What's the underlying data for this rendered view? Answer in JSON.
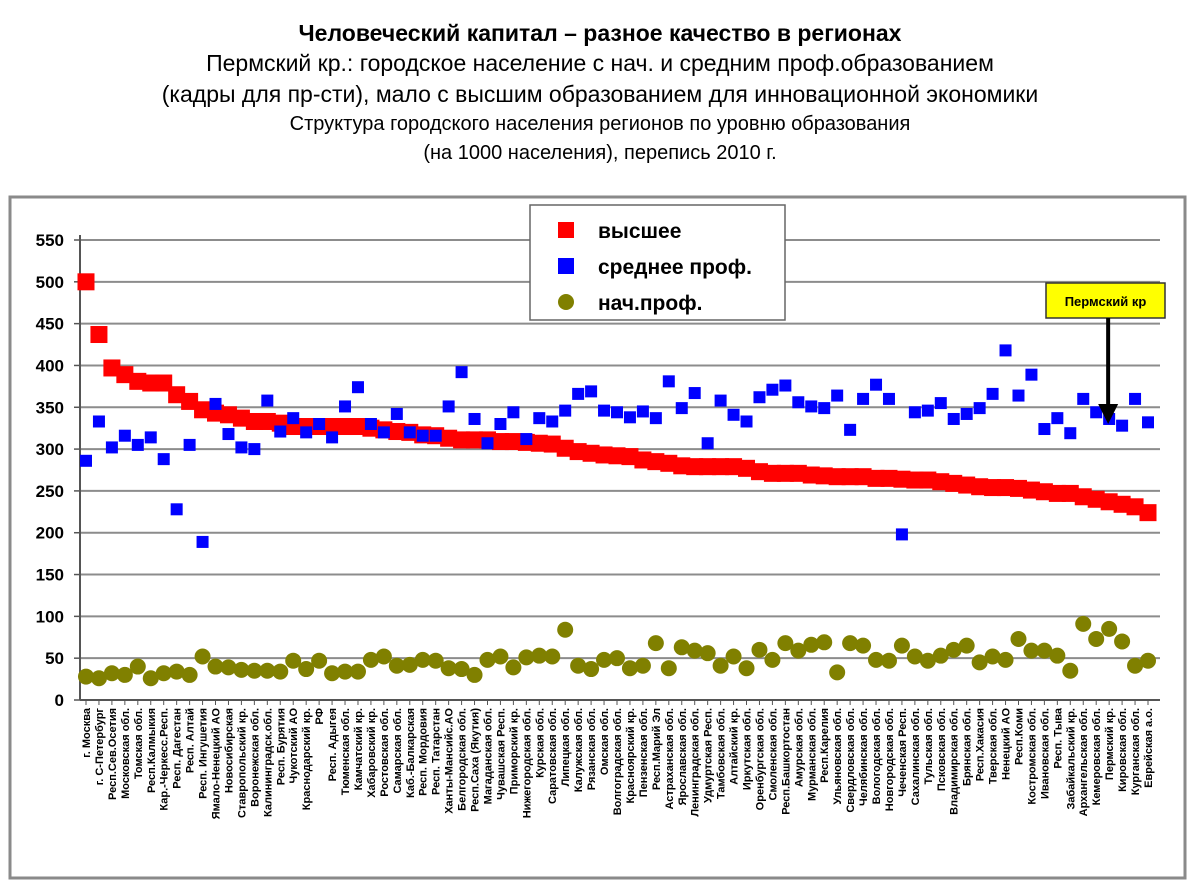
{
  "header": {
    "title": "Человеческий капитал – разное качество в регионах",
    "subtitle_line1": "Пермский кр.: городское население с нач. и средним проф.образованием",
    "subtitle_line2": "(кадры для пр-сти), мало с высшим образованием для инновационной экономики",
    "chart_title_line1": "Структура городского населения регионов по уровню образования",
    "chart_title_line2": "(на 1000 населения), перепись 2010 г."
  },
  "chart_data": {
    "type": "scatter",
    "title": "Структура городского населения регионов по уровню образования (на 1000 населения), перепись 2010 г.",
    "xlabel": "",
    "ylabel": "",
    "ylim": [
      0,
      550
    ],
    "yticks": [
      0,
      50,
      100,
      150,
      200,
      250,
      300,
      350,
      400,
      450,
      500,
      550
    ],
    "grid": true,
    "legend_position": "top-center",
    "annotation": {
      "text": "Пермский кр",
      "target_category": "Пермский кр.",
      "color": "#ffff00"
    },
    "categories": [
      "г. Москва",
      "г. С-Петербург",
      "Респ.Сев.Осетия",
      "Московская обл.",
      "Томская обл.",
      "Респ.Калмыкия",
      "Кар.-Черкесс.Респ.",
      "Респ. Дагестан",
      "Респ. Алтай",
      "Респ. Ингушетия",
      "Ямало-Ненецкий АО",
      "Новосибирская",
      "Ставропольский кр.",
      "Воронежская обл.",
      "Калининградск.обл.",
      "Респ. Бурятия",
      "Чукотский АО",
      "Краснодарский кр.",
      "РФ",
      "Респ. Адыгея",
      "Тюменская обл.",
      "Камчатский кр.",
      "Хабаровский кр.",
      "Ростовская обл.",
      "Самарская обл.",
      "Каб.-Балкарская",
      "Респ. Мордовия",
      "Респ. Татарстан",
      "Ханты-Мансийс.АО",
      "Белгородская обл.",
      "Респ.Саха (Якутия)",
      "Магаданская обл.",
      "Чувашская Респ.",
      "Приморский кр.",
      "Нижегородская обл.",
      "Курская обл.",
      "Саратовская обл.",
      "Липецкая обл.",
      "Калужская обл.",
      "Рязанская обл.",
      "Омская обл.",
      "Волгоградская обл.",
      "Красноярский кр.",
      "Пензенская обл.",
      "Респ.Марий Эл",
      "Астраханская обл.",
      "Ярославская обл.",
      "Ленинградская обл.",
      "Удмуртская Респ.",
      "Тамбовская обл.",
      "Алтайский кр.",
      "Иркутская обл.",
      "Оренбургская обл.",
      "Смоленская обл.",
      "Респ.Башкортостан",
      "Амурская обл.",
      "Мурманская обл.",
      "Респ.Карелия",
      "Ульяновская обл.",
      "Свердловская обл.",
      "Челябинская обл.",
      "Вологодская обл.",
      "Новгородская обл.",
      "Чеченская Респ.",
      "Сахалинская обл.",
      "Тульская обл.",
      "Псковская обл.",
      "Владимирская обл.",
      "Брянская обл.",
      "Респ.Хакасия",
      "Тверская обл.",
      "Ненецкий АО",
      "Респ.Коми",
      "Костромская обл.",
      "Ивановская обл.",
      "Респ. Тыва",
      "Забайкальский кр.",
      "Архангельская обл.",
      "Кемеровская обл.",
      "Пермский кр.",
      "Кировская обл.",
      "Курганская обл.",
      "Еврейская а.о."
    ],
    "series": [
      {
        "name": "высшее",
        "marker": "square",
        "color": "#ff0000",
        "values": [
          500,
          437,
          397,
          389,
          381,
          379,
          379,
          365,
          357,
          347,
          343,
          341,
          337,
          333,
          333,
          331,
          327,
          327,
          327,
          327,
          327,
          327,
          325,
          323,
          321,
          320,
          317,
          316,
          313,
          311,
          311,
          311,
          309,
          309,
          308,
          307,
          306,
          301,
          297,
          295,
          293,
          292,
          291,
          287,
          285,
          283,
          280,
          279,
          279,
          279,
          279,
          277,
          273,
          271,
          271,
          271,
          269,
          268,
          267,
          267,
          267,
          265,
          265,
          264,
          263,
          263,
          261,
          259,
          257,
          255,
          254,
          254,
          253,
          251,
          249,
          247,
          247,
          243,
          240,
          237,
          234,
          231,
          224
        ]
      },
      {
        "name": "среднее проф.",
        "marker": "square",
        "color": "#0000ff",
        "values": [
          286,
          333,
          302,
          316,
          305,
          314,
          288,
          228,
          305,
          189,
          354,
          318,
          302,
          300,
          358,
          321,
          337,
          320,
          330,
          314,
          351,
          374,
          330,
          320,
          342,
          320,
          316,
          316,
          351,
          392,
          336,
          307,
          330,
          344,
          312,
          337,
          333,
          346,
          366,
          369,
          346,
          344,
          338,
          345,
          337,
          381,
          349,
          367,
          307,
          358,
          341,
          333,
          362,
          371,
          376,
          356,
          351,
          349,
          364,
          323,
          360,
          377,
          360,
          198,
          344,
          346,
          355,
          336,
          342,
          349,
          366,
          418,
          364,
          389,
          324,
          337,
          319,
          360,
          344,
          336,
          328,
          360,
          332
        ]
      },
      {
        "name": "нач.проф.",
        "marker": "circle",
        "color": "#808000",
        "values": [
          28,
          26,
          32,
          30,
          40,
          26,
          32,
          34,
          30,
          52,
          40,
          39,
          36,
          35,
          35,
          34,
          47,
          37,
          47,
          32,
          34,
          34,
          48,
          52,
          41,
          42,
          48,
          47,
          38,
          37,
          30,
          48,
          52,
          39,
          51,
          53,
          52,
          84,
          41,
          37,
          48,
          50,
          38,
          41,
          68,
          38,
          63,
          59,
          56,
          41,
          52,
          38,
          60,
          48,
          68,
          59,
          66,
          69,
          33,
          68,
          65,
          48,
          47,
          65,
          52,
          47,
          53,
          60,
          65,
          45,
          52,
          48,
          73,
          59,
          59,
          53,
          35,
          91,
          73,
          85,
          70,
          41,
          47
        ]
      }
    ]
  }
}
